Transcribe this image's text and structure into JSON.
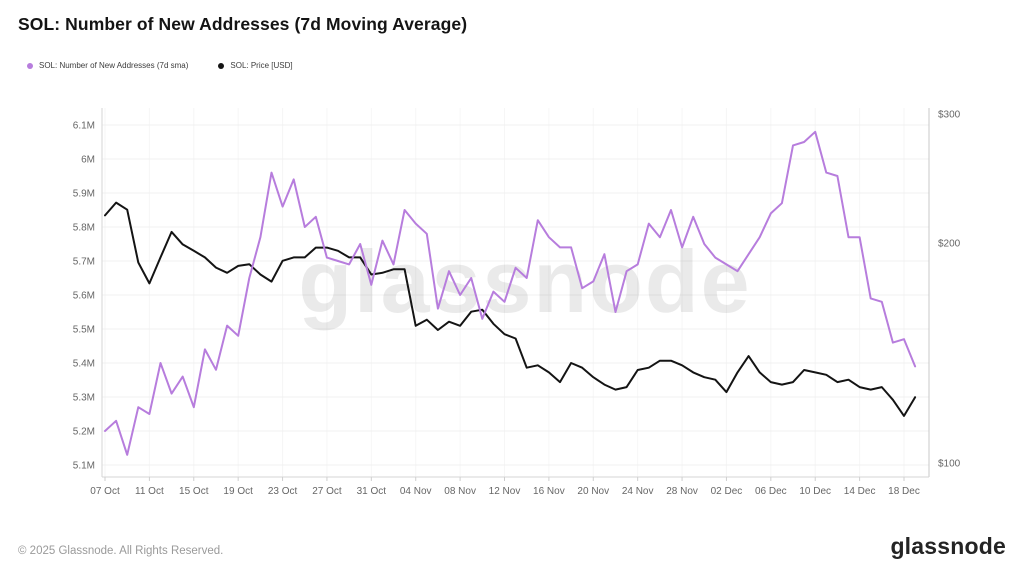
{
  "title": "SOL: Number of New Addresses (7d Moving Average)",
  "legend": [
    {
      "label": "SOL: Number of New Addresses (7d sma)",
      "color": "#b77ddd"
    },
    {
      "label": "SOL: Price [USD]",
      "color": "#141414"
    }
  ],
  "watermark": "glassnode",
  "footer": {
    "copyright": "© 2025 Glassnode. All Rights Reserved.",
    "logo": "glassnode"
  },
  "chart_data": {
    "type": "line",
    "grid": true,
    "legend_position": "top-left",
    "x": [
      "07 Oct",
      "08 Oct",
      "09 Oct",
      "10 Oct",
      "11 Oct",
      "12 Oct",
      "13 Oct",
      "14 Oct",
      "15 Oct",
      "16 Oct",
      "17 Oct",
      "18 Oct",
      "19 Oct",
      "20 Oct",
      "21 Oct",
      "22 Oct",
      "23 Oct",
      "24 Oct",
      "25 Oct",
      "26 Oct",
      "27 Oct",
      "28 Oct",
      "29 Oct",
      "30 Oct",
      "31 Oct",
      "01 Nov",
      "02 Nov",
      "03 Nov",
      "04 Nov",
      "05 Nov",
      "06 Nov",
      "07 Nov",
      "08 Nov",
      "09 Nov",
      "10 Nov",
      "11 Nov",
      "12 Nov",
      "13 Nov",
      "14 Nov",
      "15 Nov",
      "16 Nov",
      "17 Nov",
      "18 Nov",
      "19 Nov",
      "20 Nov",
      "21 Nov",
      "22 Nov",
      "23 Nov",
      "24 Nov",
      "25 Nov",
      "26 Nov",
      "27 Nov",
      "28 Nov",
      "29 Nov",
      "30 Nov",
      "01 Dec",
      "02 Dec",
      "03 Dec",
      "04 Dec",
      "05 Dec",
      "06 Dec",
      "07 Dec",
      "08 Dec",
      "09 Dec",
      "10 Dec",
      "11 Dec",
      "12 Dec",
      "13 Dec",
      "14 Dec",
      "15 Dec",
      "16 Dec",
      "17 Dec",
      "18 Dec",
      "19 Dec"
    ],
    "x_tick_labels": [
      "07 Oct",
      "11 Oct",
      "15 Oct",
      "19 Oct",
      "23 Oct",
      "27 Oct",
      "31 Oct",
      "04 Nov",
      "08 Nov",
      "12 Nov",
      "16 Nov",
      "20 Nov",
      "24 Nov",
      "28 Nov",
      "02 Dec",
      "06 Dec",
      "10 Dec",
      "14 Dec",
      "18 Dec"
    ],
    "y_left": {
      "title": "Number of New Addresses (millions)",
      "min": 5.1,
      "max": 6.1,
      "scale": "linear",
      "ticks": [
        {
          "value": 6.1,
          "label": "6.1M"
        },
        {
          "value": 6.0,
          "label": "6M"
        },
        {
          "value": 5.9,
          "label": "5.9M"
        },
        {
          "value": 5.8,
          "label": "5.8M"
        },
        {
          "value": 5.7,
          "label": "5.7M"
        },
        {
          "value": 5.6,
          "label": "5.6M"
        },
        {
          "value": 5.5,
          "label": "5.5M"
        },
        {
          "value": 5.4,
          "label": "5.4M"
        },
        {
          "value": 5.3,
          "label": "5.3M"
        },
        {
          "value": 5.2,
          "label": "5.2M"
        },
        {
          "value": 5.1,
          "label": "5.1M"
        }
      ]
    },
    "y_right": {
      "title": "Price (USD)",
      "min": 100,
      "max": 300,
      "scale": "log",
      "ticks": [
        {
          "value": 300,
          "label": "$300"
        },
        {
          "value": 200,
          "label": "$200"
        },
        {
          "value": 100,
          "label": "$100"
        }
      ]
    },
    "series": [
      {
        "name": "SOL: Number of New Addresses (7d sma)",
        "axis": "left",
        "color": "#b77ddd",
        "unit": "M",
        "values": [
          5.2,
          5.23,
          5.13,
          5.27,
          5.25,
          5.4,
          5.31,
          5.36,
          5.27,
          5.44,
          5.38,
          5.51,
          5.48,
          5.65,
          5.77,
          5.96,
          5.86,
          5.94,
          5.8,
          5.83,
          5.71,
          5.7,
          5.69,
          5.75,
          5.63,
          5.76,
          5.69,
          5.85,
          5.81,
          5.78,
          5.56,
          5.67,
          5.6,
          5.65,
          5.53,
          5.61,
          5.58,
          5.68,
          5.65,
          5.82,
          5.77,
          5.74,
          5.74,
          5.62,
          5.64,
          5.72,
          5.55,
          5.67,
          5.69,
          5.81,
          5.77,
          5.85,
          5.74,
          5.83,
          5.75,
          5.71,
          5.69,
          5.67,
          5.72,
          5.77,
          5.84,
          5.87,
          6.04,
          6.05,
          6.08,
          5.96,
          5.95,
          5.77,
          5.77,
          5.59,
          5.58,
          5.46,
          5.47,
          5.39
        ]
      },
      {
        "name": "SOL: Price [USD]",
        "axis": "right",
        "color": "#141414",
        "unit": "USD",
        "values": [
          218,
          227,
          222,
          188,
          176,
          191,
          207,
          199,
          195,
          191,
          185,
          182,
          186,
          187,
          181,
          177,
          189,
          191,
          191,
          197,
          197,
          195,
          191,
          191,
          181,
          182,
          184,
          184,
          154,
          157,
          152,
          156,
          154,
          161,
          162,
          155,
          150,
          148,
          135,
          136,
          133,
          129,
          137,
          135,
          131,
          128,
          126,
          127,
          134,
          135,
          138,
          138,
          136,
          133,
          131,
          130,
          125,
          133,
          140,
          133,
          129,
          128,
          129,
          134,
          133,
          132,
          129,
          130,
          127,
          126,
          127,
          122,
          116,
          123
        ]
      }
    ]
  }
}
